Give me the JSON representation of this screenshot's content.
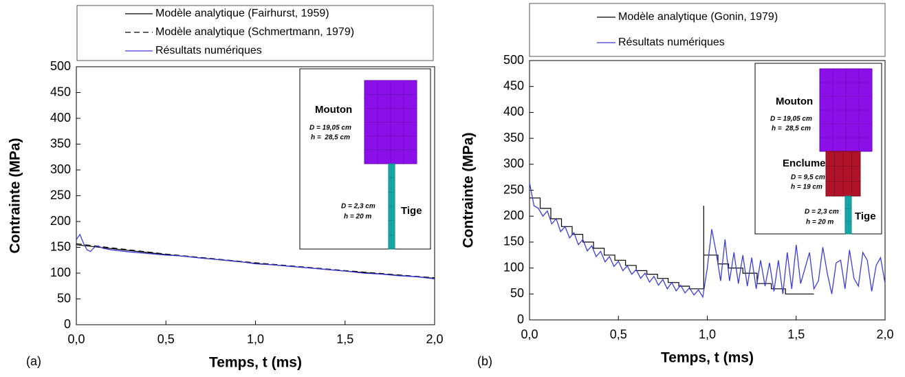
{
  "chart_data": [
    {
      "type": "line",
      "panel_label": "(a)",
      "xlabel": "Temps, t (ms)",
      "ylabel": "Contrainte (MPa)",
      "xlim": [
        0,
        2
      ],
      "ylim": [
        0,
        500
      ],
      "xticks": [
        {
          "value": 0,
          "label": "0,0"
        },
        {
          "value": 0.5,
          "label": "0,5"
        },
        {
          "value": 1,
          "label": "1,0"
        },
        {
          "value": 1.5,
          "label": "1,5"
        },
        {
          "value": 2,
          "label": "2,0"
        }
      ],
      "yticks": [
        0,
        50,
        100,
        150,
        200,
        250,
        300,
        350,
        400,
        450,
        500
      ],
      "series": [
        {
          "name": "Modèle analytique (Fairhurst, 1959)",
          "color": "#000000",
          "linestyle": "solid",
          "x": [
            0,
            0.5,
            1,
            1.5,
            2
          ],
          "values": [
            155,
            136,
            119,
            104,
            90
          ]
        },
        {
          "name": "Modèle analytique (Schmertmann, 1979)",
          "color": "#000000",
          "linestyle": "dashed",
          "x": [
            0,
            0.5,
            1,
            1.5,
            2
          ],
          "values": [
            157,
            137,
            120,
            105,
            91
          ]
        },
        {
          "name": "Résultats numériques",
          "color": "#3b3bd6",
          "linestyle": "solid",
          "x": [
            0,
            0.02,
            0.04,
            0.06,
            0.08,
            0.1,
            0.12,
            0.15,
            0.2,
            0.3,
            0.4,
            0.5,
            0.6,
            0.7,
            0.8,
            0.9,
            1.0,
            1.1,
            1.2,
            1.3,
            1.4,
            1.5,
            1.6,
            1.7,
            1.8,
            1.9,
            2.0
          ],
          "values": [
            165,
            175,
            158,
            145,
            142,
            150,
            153,
            148,
            145,
            141,
            138,
            135,
            133,
            129,
            126,
            123,
            118,
            116,
            113,
            110,
            107,
            104,
            100,
            98,
            95,
            93,
            89
          ]
        }
      ],
      "inset": {
        "labels": [
          "Mouton",
          "D = 19,05 cm",
          "h =  28,5 cm",
          "D = 2,3 cm",
          "h = 20 m",
          "Tige"
        ]
      }
    },
    {
      "type": "line",
      "panel_label": "(b)",
      "xlabel": "Temps, t (ms)",
      "ylabel": "Contrainte (MPa)",
      "xlim": [
        0,
        2
      ],
      "ylim": [
        0,
        500
      ],
      "xticks": [
        {
          "value": 0,
          "label": "0,0"
        },
        {
          "value": 0.5,
          "label": "0,5"
        },
        {
          "value": 1,
          "label": "1,0"
        },
        {
          "value": 1.5,
          "label": "1,5"
        },
        {
          "value": 2,
          "label": "2,0"
        }
      ],
      "yticks": [
        0,
        50,
        100,
        150,
        200,
        250,
        300,
        350,
        400,
        450,
        500
      ],
      "series": [
        {
          "name": "Modèle analytique (Gonin, 1979)",
          "color": "#000000",
          "linestyle": "solid",
          "x": [
            0,
            0.06,
            0.06,
            0.12,
            0.12,
            0.18,
            0.18,
            0.24,
            0.24,
            0.3,
            0.3,
            0.36,
            0.36,
            0.42,
            0.42,
            0.48,
            0.48,
            0.54,
            0.54,
            0.6,
            0.6,
            0.66,
            0.66,
            0.72,
            0.72,
            0.78,
            0.78,
            0.84,
            0.84,
            0.9,
            0.9,
            0.98,
            0.98,
            0.98,
            1.06,
            1.06,
            1.12,
            1.12,
            1.2,
            1.2,
            1.28,
            1.28,
            1.36,
            1.36,
            1.44,
            1.44,
            1.6
          ],
          "values": [
            235,
            235,
            215,
            215,
            195,
            195,
            180,
            180,
            165,
            165,
            150,
            150,
            138,
            138,
            125,
            125,
            115,
            115,
            105,
            105,
            95,
            95,
            88,
            88,
            80,
            80,
            72,
            72,
            65,
            65,
            60,
            60,
            220,
            125,
            125,
            108,
            108,
            100,
            100,
            90,
            90,
            70,
            70,
            60,
            60,
            50,
            50
          ]
        },
        {
          "name": "Résultats numériques",
          "color": "#3b3bd6",
          "linestyle": "solid",
          "x": [
            0,
            0.025,
            0.05,
            0.075,
            0.1,
            0.125,
            0.15,
            0.175,
            0.2,
            0.225,
            0.25,
            0.275,
            0.3,
            0.325,
            0.35,
            0.375,
            0.4,
            0.425,
            0.45,
            0.475,
            0.5,
            0.525,
            0.55,
            0.575,
            0.6,
            0.625,
            0.65,
            0.675,
            0.7,
            0.725,
            0.75,
            0.775,
            0.8,
            0.825,
            0.85,
            0.875,
            0.9,
            0.925,
            0.95,
            0.975,
            1.0,
            1.025,
            1.05,
            1.075,
            1.1,
            1.125,
            1.15,
            1.175,
            1.2,
            1.225,
            1.25,
            1.275,
            1.3,
            1.325,
            1.35,
            1.375,
            1.4,
            1.425,
            1.45,
            1.475,
            1.5,
            1.525,
            1.55,
            1.575,
            1.6,
            1.625,
            1.65,
            1.675,
            1.7,
            1.725,
            1.75,
            1.775,
            1.8,
            1.825,
            1.85,
            1.875,
            1.9,
            1.925,
            1.95,
            1.975,
            2.0
          ],
          "values": [
            265,
            220,
            215,
            200,
            210,
            185,
            195,
            170,
            180,
            158,
            168,
            145,
            155,
            133,
            143,
            122,
            132,
            112,
            122,
            103,
            113,
            95,
            104,
            88,
            97,
            80,
            90,
            73,
            84,
            67,
            78,
            60,
            72,
            56,
            67,
            52,
            62,
            48,
            58,
            44,
            100,
            175,
            130,
            75,
            155,
            75,
            130,
            70,
            125,
            65,
            120,
            60,
            115,
            65,
            110,
            55,
            115,
            50,
            130,
            60,
            145,
            70,
            100,
            130,
            60,
            75,
            140,
            90,
            50,
            110,
            115,
            60,
            135,
            80,
            65,
            130,
            115,
            55,
            105,
            120,
            70
          ]
        }
      ],
      "inset": {
        "labels": [
          "Mouton",
          "D = 19,05 cm",
          "h =  28,5 cm",
          "Enclume",
          "D = 9,5 cm",
          "h = 19 cm",
          "D = 2,3 cm",
          "h = 20 m",
          "Tige"
        ]
      }
    }
  ]
}
